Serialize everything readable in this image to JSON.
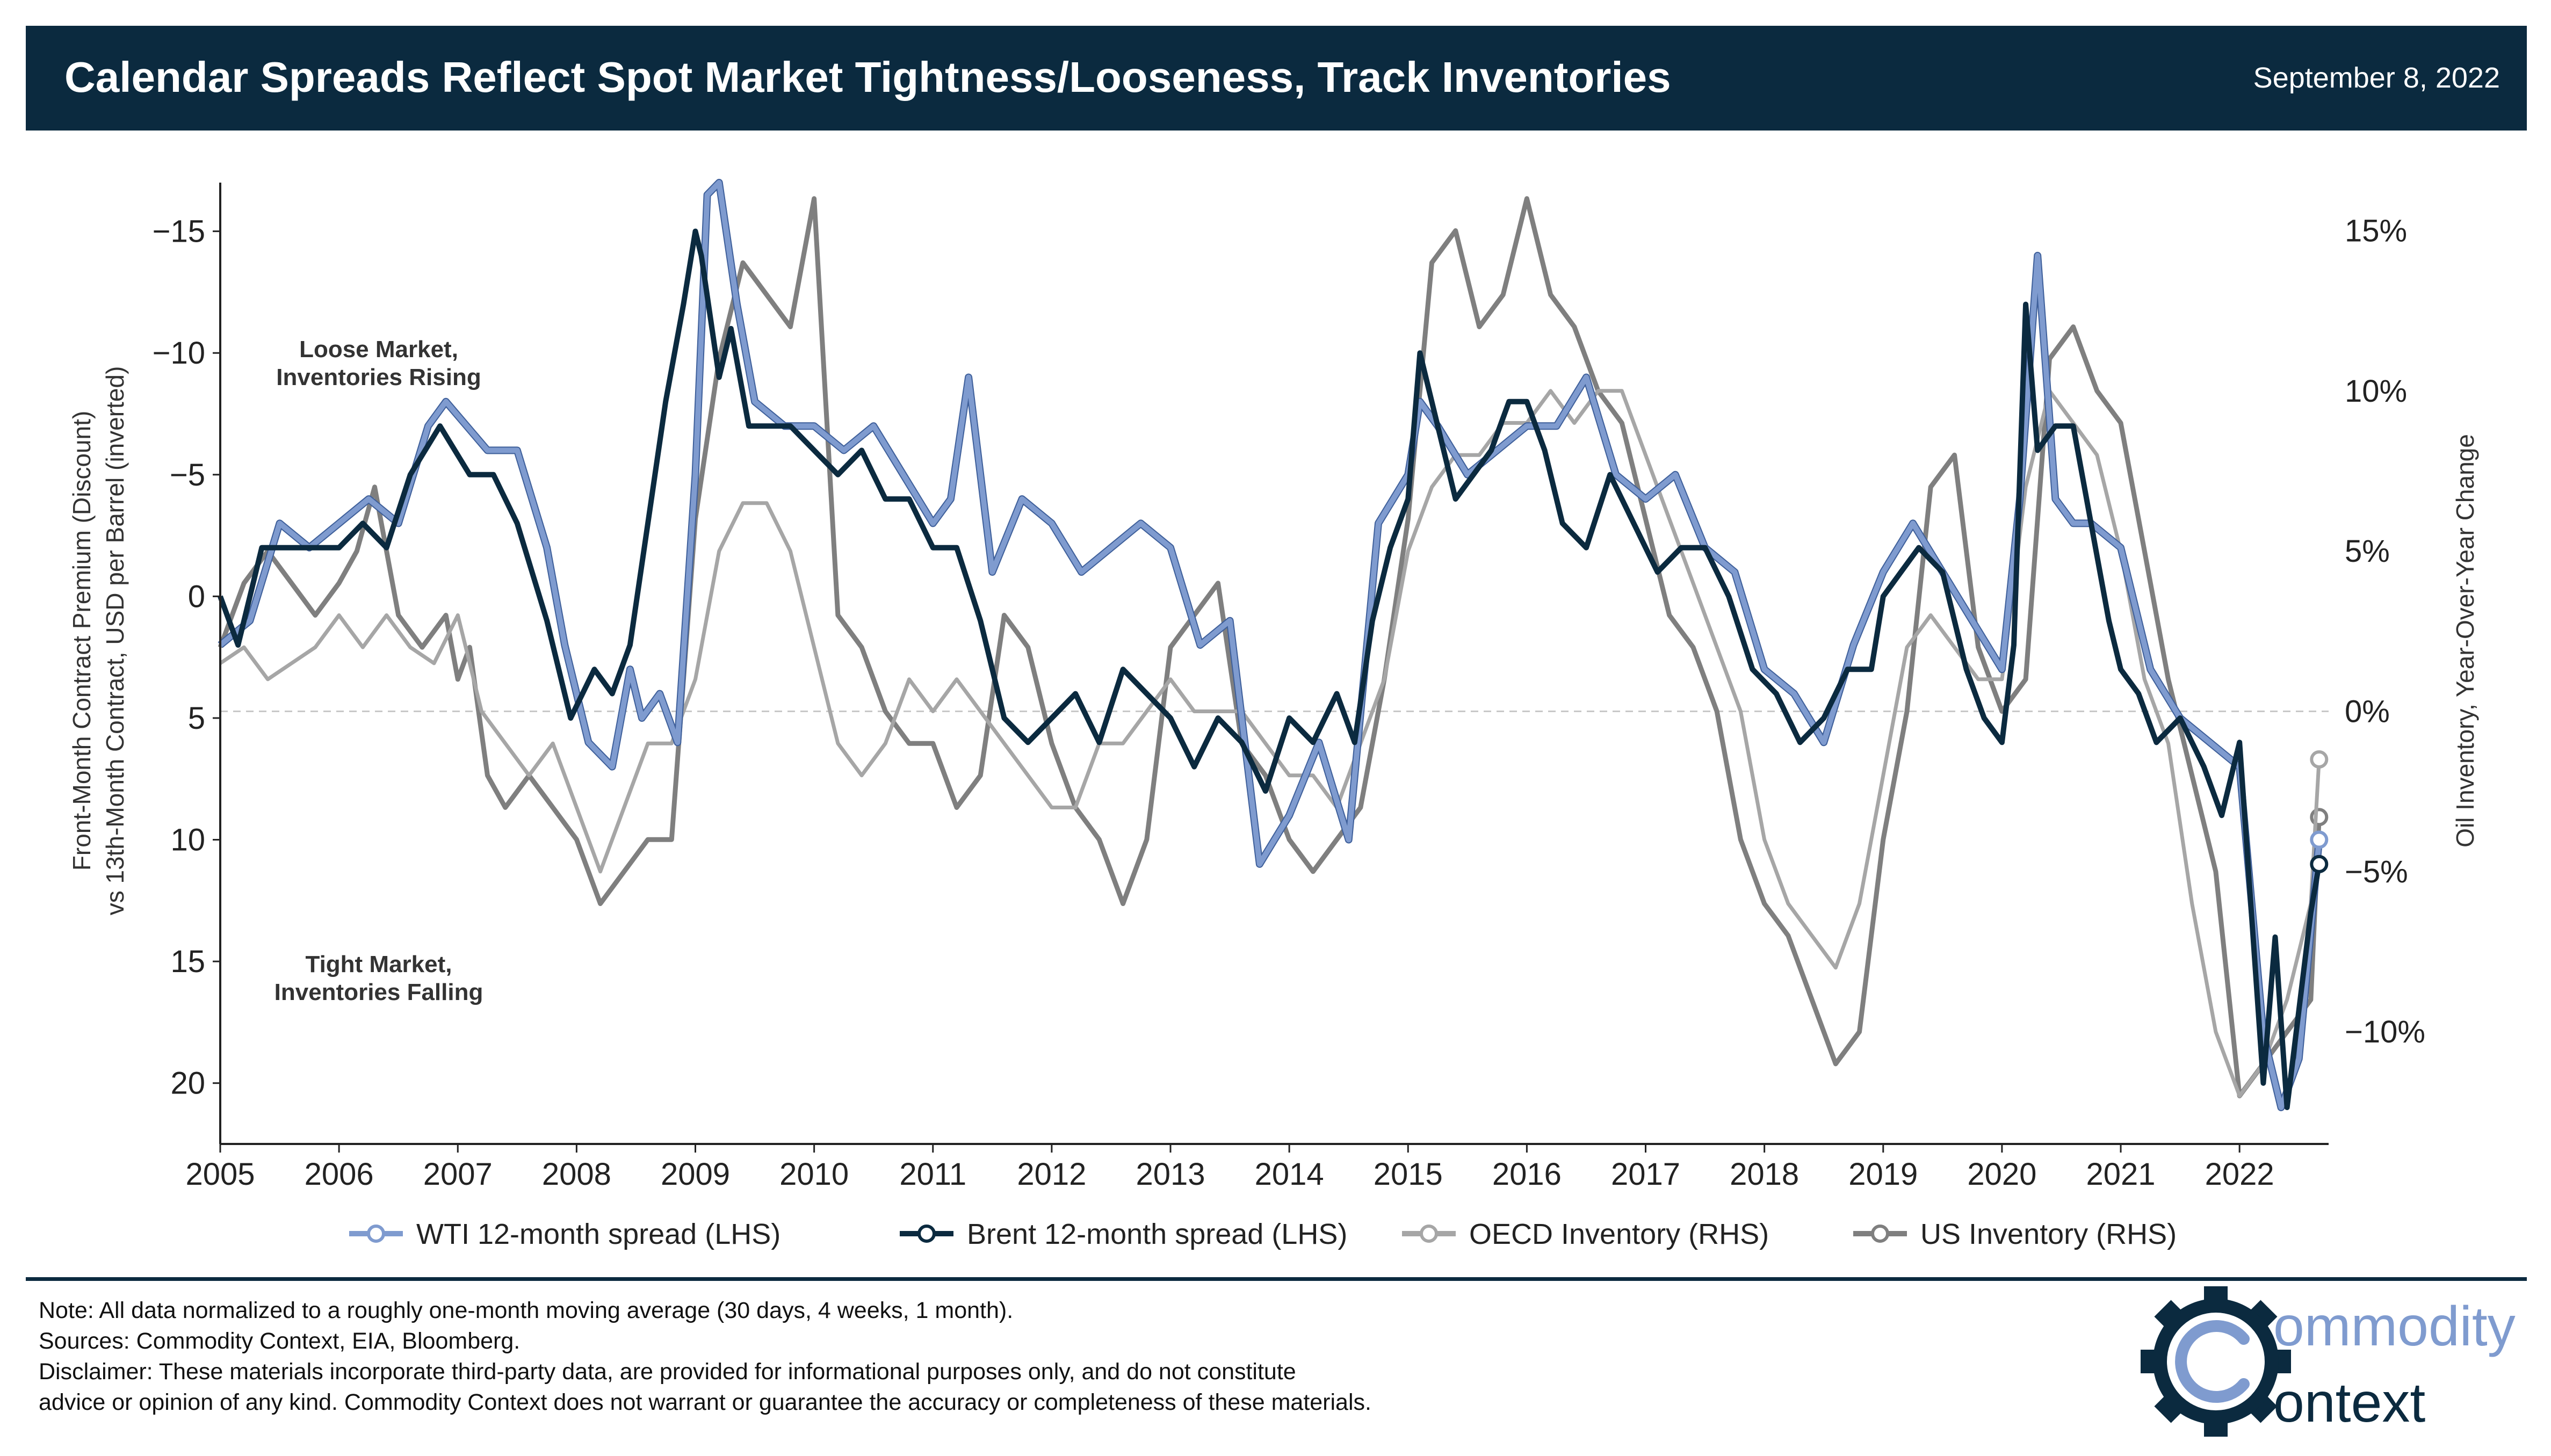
{
  "header": {
    "title": "Calendar Spreads Reflect Spot Market Tightness/Looseness, Track Inventories",
    "date": "September 8, 2022"
  },
  "colors": {
    "header_bg": "#0b2a3f",
    "wti": "#7f9bcf",
    "brent": "#0b2a3f",
    "oecd": "#a6a6a6",
    "us": "#7f7f7f"
  },
  "chart_data": {
    "type": "line",
    "left_axis": {
      "label_line1": "Front-Month Contract Premium (Discount)",
      "label_line2": "vs 13th-Month Contract, USD per Barrel (inverted)",
      "ylim": [
        -17.0,
        22.5
      ],
      "inverted": true,
      "ticks": [
        -15,
        -10,
        -5,
        0,
        5,
        10,
        15,
        20
      ],
      "tick_labels": [
        "−15",
        "−10",
        "−5",
        "0",
        "5",
        "10",
        "15",
        "20"
      ]
    },
    "right_axis": {
      "label": "Oil Inventory, Year-Over-Year Change",
      "ylim": [
        -13.5,
        16.5
      ],
      "ticks": [
        15,
        10,
        5,
        0,
        -5,
        -10
      ],
      "tick_labels": [
        "15%",
        "10%",
        "5%",
        "0%",
        "−5%",
        "−10%"
      ]
    },
    "x_axis": {
      "xlim": [
        2005,
        2022.75
      ],
      "ticks": [
        2005,
        2006,
        2007,
        2008,
        2009,
        2010,
        2011,
        2012,
        2013,
        2014,
        2015,
        2016,
        2017,
        2018,
        2019,
        2020,
        2021,
        2022
      ],
      "tick_labels": [
        "2005",
        "2006",
        "2007",
        "2008",
        "2009",
        "2010",
        "2011",
        "2012",
        "2013",
        "2014",
        "2015",
        "2016",
        "2017",
        "2018",
        "2019",
        "2020",
        "2021",
        "2022"
      ]
    },
    "annotations": {
      "loose_line1": "Loose Market,",
      "loose_line2": "Inventories Rising",
      "tight_line1": "Tight Market,",
      "tight_line2": "Inventories Falling"
    },
    "legend_placement": "bottom",
    "grid": false,
    "series": [
      {
        "name": "WTI 12-month spread (LHS)",
        "axis": "left",
        "x": [
          2005.0,
          2005.25,
          2005.5,
          2005.75,
          2006.0,
          2006.25,
          2006.5,
          2006.75,
          2006.9,
          2007.25,
          2007.5,
          2007.75,
          2007.9,
          2008.1,
          2008.3,
          2008.45,
          2008.55,
          2008.7,
          2008.85,
          2009.0,
          2009.1,
          2009.2,
          2009.35,
          2009.5,
          2009.75,
          2010.0,
          2010.25,
          2010.5,
          2010.75,
          2011.0,
          2011.15,
          2011.3,
          2011.5,
          2011.75,
          2012.0,
          2012.25,
          2012.5,
          2012.75,
          2013.0,
          2013.25,
          2013.5,
          2013.75,
          2014.0,
          2014.25,
          2014.5,
          2014.75,
          2015.0,
          2015.1,
          2015.25,
          2015.5,
          2015.75,
          2016.0,
          2016.25,
          2016.5,
          2016.75,
          2017.0,
          2017.25,
          2017.5,
          2017.75,
          2018.0,
          2018.25,
          2018.5,
          2018.75,
          2019.0,
          2019.25,
          2019.5,
          2019.75,
          2020.0,
          2020.15,
          2020.3,
          2020.45,
          2020.6,
          2020.75,
          2021.0,
          2021.25,
          2021.5,
          2021.75,
          2022.0,
          2022.2,
          2022.35,
          2022.5,
          2022.67
        ],
        "values": [
          2,
          1,
          -3,
          -2,
          -3,
          -4,
          -3,
          -7,
          -8,
          -6,
          -6,
          -2,
          2,
          6,
          7,
          3,
          5,
          4,
          6,
          -5,
          -16.5,
          -17,
          -12,
          -8,
          -7,
          -7,
          -6,
          -7,
          -5,
          -3,
          -4,
          -9,
          -1,
          -4,
          -3,
          -1,
          -2,
          -3,
          -2,
          2,
          1,
          11,
          9,
          6,
          10,
          -3,
          -5,
          -8,
          -7,
          -5,
          -6,
          -7,
          -7,
          -9,
          -5,
          -4,
          -5,
          -2,
          -1,
          3,
          4,
          6,
          2,
          -1,
          -3,
          -1,
          1,
          3,
          -4,
          -14,
          -4,
          -3,
          -3,
          -2,
          3,
          5,
          6,
          7,
          18,
          21,
          19,
          10
        ]
      },
      {
        "name": "Brent 12-month spread (LHS)",
        "axis": "left",
        "x": [
          2005.0,
          2005.15,
          2005.35,
          2005.6,
          2006.0,
          2006.2,
          2006.4,
          2006.6,
          2006.85,
          2007.1,
          2007.3,
          2007.5,
          2007.75,
          2007.95,
          2008.15,
          2008.3,
          2008.45,
          2008.6,
          2008.75,
          2008.9,
          2009.0,
          2009.05,
          2009.2,
          2009.3,
          2009.45,
          2009.6,
          2009.8,
          2010.0,
          2010.2,
          2010.4,
          2010.6,
          2010.8,
          2011.0,
          2011.2,
          2011.4,
          2011.6,
          2011.8,
          2012.0,
          2012.2,
          2012.4,
          2012.6,
          2012.8,
          2013.0,
          2013.2,
          2013.4,
          2013.6,
          2013.8,
          2014.0,
          2014.2,
          2014.4,
          2014.55,
          2014.7,
          2014.85,
          2015.0,
          2015.1,
          2015.25,
          2015.4,
          2015.55,
          2015.7,
          2015.85,
          2016.0,
          2016.15,
          2016.3,
          2016.5,
          2016.7,
          2016.9,
          2017.1,
          2017.3,
          2017.5,
          2017.7,
          2017.9,
          2018.1,
          2018.3,
          2018.5,
          2018.7,
          2018.9,
          2019.0,
          2019.15,
          2019.3,
          2019.5,
          2019.7,
          2019.85,
          2020.0,
          2020.1,
          2020.2,
          2020.3,
          2020.45,
          2020.6,
          2020.75,
          2020.9,
          2021.0,
          2021.15,
          2021.3,
          2021.5,
          2021.7,
          2021.85,
          2022.0,
          2022.1,
          2022.2,
          2022.3,
          2022.4,
          2022.5,
          2022.6,
          2022.67
        ],
        "values": [
          0,
          2,
          -2,
          -2,
          -2,
          -3,
          -2,
          -5,
          -7,
          -5,
          -5,
          -3,
          1,
          5,
          3,
          4,
          2,
          -3,
          -8,
          -12,
          -15,
          -14,
          -9,
          -11,
          -7,
          -7,
          -7,
          -6,
          -5,
          -6,
          -4,
          -4,
          -2,
          -2,
          1,
          5,
          6,
          5,
          4,
          6,
          3,
          4,
          5,
          7,
          5,
          6,
          8,
          5,
          6,
          4,
          6,
          1,
          -2,
          -4,
          -10,
          -7,
          -4,
          -5,
          -6,
          -8,
          -8,
          -6,
          -3,
          -2,
          -5,
          -3,
          -1,
          -2,
          -2,
          0,
          3,
          4,
          6,
          5,
          3,
          3,
          0,
          -1,
          -2,
          -1,
          3,
          5,
          6,
          2,
          -12,
          -6,
          -7,
          -7,
          -3,
          1,
          3,
          4,
          6,
          5,
          7,
          9,
          6,
          13,
          20,
          14,
          21,
          17,
          13,
          11
        ]
      },
      {
        "name": "OECD Inventory (RHS)",
        "axis": "right",
        "x": [
          2005.0,
          2005.2,
          2005.4,
          2005.6,
          2005.8,
          2006.0,
          2006.2,
          2006.4,
          2006.6,
          2006.8,
          2007.0,
          2007.2,
          2007.4,
          2007.6,
          2007.8,
          2008.0,
          2008.2,
          2008.4,
          2008.6,
          2008.8,
          2009.0,
          2009.2,
          2009.4,
          2009.6,
          2009.8,
          2010.0,
          2010.2,
          2010.4,
          2010.6,
          2010.8,
          2011.0,
          2011.2,
          2011.4,
          2011.6,
          2011.8,
          2012.0,
          2012.2,
          2012.4,
          2012.6,
          2012.8,
          2013.0,
          2013.2,
          2013.4,
          2013.6,
          2013.8,
          2014.0,
          2014.2,
          2014.4,
          2014.6,
          2014.8,
          2015.0,
          2015.2,
          2015.4,
          2015.6,
          2015.8,
          2016.0,
          2016.2,
          2016.4,
          2016.6,
          2016.8,
          2017.0,
          2017.2,
          2017.4,
          2017.6,
          2017.8,
          2018.0,
          2018.2,
          2018.4,
          2018.6,
          2018.8,
          2019.0,
          2019.2,
          2019.4,
          2019.6,
          2019.8,
          2020.0,
          2020.2,
          2020.4,
          2020.6,
          2020.8,
          2021.0,
          2021.2,
          2021.4,
          2021.6,
          2021.8,
          2022.0,
          2022.2,
          2022.4,
          2022.6,
          2022.67
        ],
        "values": [
          1.5,
          2,
          1,
          1.5,
          2,
          3,
          2,
          3,
          2,
          1.5,
          3,
          0,
          -1,
          -2,
          -1,
          -3,
          -5,
          -3,
          -1,
          -1,
          1,
          5,
          6.5,
          6.5,
          5,
          2,
          -1,
          -2,
          -1,
          1,
          0,
          1,
          0,
          -1,
          -2,
          -3,
          -3,
          -1,
          -1,
          0,
          1,
          0,
          0,
          0,
          -1,
          -2,
          -2,
          -3,
          -1,
          1,
          5,
          7,
          8,
          8,
          9,
          9,
          10,
          9,
          10,
          10,
          8,
          6,
          4,
          2,
          0,
          -4,
          -6,
          -7,
          -8,
          -6,
          -2,
          2,
          3,
          2,
          1,
          1,
          7,
          10,
          9,
          8,
          5,
          1,
          -1,
          -6,
          -10,
          -12,
          -11,
          -9,
          -6,
          -1.5
        ]
      },
      {
        "name": "US Inventory (RHS)",
        "axis": "right",
        "x": [
          2005.0,
          2005.2,
          2005.4,
          2005.6,
          2005.8,
          2006.0,
          2006.15,
          2006.3,
          2006.5,
          2006.7,
          2006.9,
          2007.0,
          2007.1,
          2007.25,
          2007.4,
          2007.6,
          2007.8,
          2008.0,
          2008.2,
          2008.4,
          2008.6,
          2008.8,
          2009.0,
          2009.2,
          2009.4,
          2009.6,
          2009.8,
          2010.0,
          2010.2,
          2010.4,
          2010.6,
          2010.8,
          2011.0,
          2011.2,
          2011.4,
          2011.6,
          2011.8,
          2012.0,
          2012.2,
          2012.4,
          2012.6,
          2012.8,
          2013.0,
          2013.2,
          2013.4,
          2013.6,
          2013.8,
          2014.0,
          2014.2,
          2014.4,
          2014.6,
          2014.8,
          2015.0,
          2015.2,
          2015.4,
          2015.6,
          2015.8,
          2016.0,
          2016.2,
          2016.4,
          2016.6,
          2016.8,
          2017.0,
          2017.2,
          2017.4,
          2017.6,
          2017.8,
          2018.0,
          2018.2,
          2018.4,
          2018.6,
          2018.8,
          2019.0,
          2019.2,
          2019.4,
          2019.6,
          2019.8,
          2020.0,
          2020.2,
          2020.4,
          2020.6,
          2020.8,
          2021.0,
          2021.2,
          2021.4,
          2021.6,
          2021.8,
          2022.0,
          2022.2,
          2022.4,
          2022.6,
          2022.67
        ],
        "values": [
          2,
          4,
          5,
          4,
          3,
          4,
          5,
          7,
          3,
          2,
          3,
          1,
          2,
          -2,
          -3,
          -2,
          -3,
          -4,
          -6,
          -5,
          -4,
          -4,
          6,
          11,
          14,
          13,
          12,
          16,
          3,
          2,
          0,
          -1,
          -1,
          -3,
          -2,
          3,
          2,
          -1,
          -3,
          -4,
          -6,
          -4,
          2,
          3,
          4,
          -1,
          -2,
          -4,
          -5,
          -4,
          -3,
          1,
          6,
          14,
          15,
          12,
          13,
          16,
          13,
          12,
          10,
          9,
          6,
          3,
          2,
          0,
          -4,
          -6,
          -7,
          -9,
          -11,
          -10,
          -4,
          0,
          7,
          8,
          2,
          0,
          1,
          11,
          12,
          10,
          9,
          5,
          1,
          -2,
          -5,
          -12,
          -11,
          -10,
          -9,
          -3.3
        ]
      }
    ]
  },
  "legend": [
    {
      "label": "WTI 12-month spread (LHS)",
      "color_key": "wti"
    },
    {
      "label": "Brent 12-month spread (LHS)",
      "color_key": "brent"
    },
    {
      "label": "OECD Inventory (RHS)",
      "color_key": "oecd"
    },
    {
      "label": "US Inventory (RHS)",
      "color_key": "us"
    }
  ],
  "footnotes": {
    "note": "Note: All data normalized to a roughly one-month moving average (30 days, 4 weeks, 1 month).",
    "sources": "Sources: Commodity Context, EIA, Bloomberg.",
    "disclaimer_line1": "Disclaimer: These materials incorporate third-party data, are provided for informational purposes only, and do not constitute",
    "disclaimer_line2": "advice or opinion of any kind. Commodity Context does not warrant or guarantee the accuracy or completeness of these materials."
  },
  "logo": {
    "line1_rest": "ommodity",
    "line2_rest": "ontext",
    "icon": "gear-icon",
    "color_dark": "#0b2a3f",
    "color_light": "#7f9bcf"
  }
}
